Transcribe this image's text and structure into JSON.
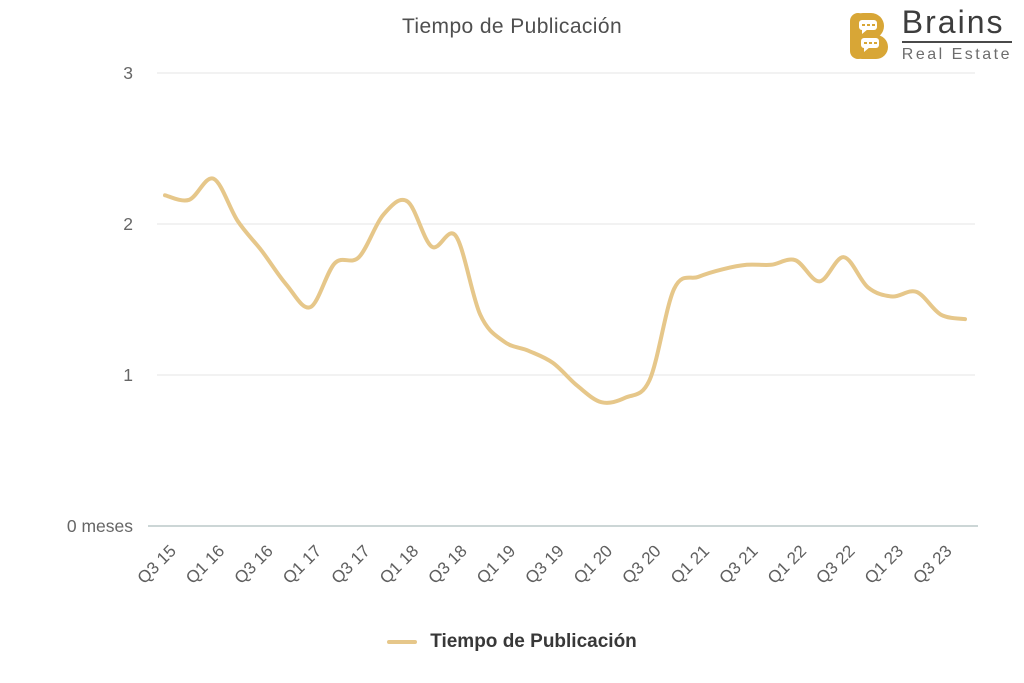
{
  "header": {
    "title": "Tiempo de Publicación",
    "logo": {
      "brand": "Brains",
      "sub": "Real Estate",
      "gold": "#d8a636"
    }
  },
  "chart_data": {
    "type": "line",
    "title": "Tiempo de Publicación",
    "unit": "meses",
    "x": [
      "Q3 15",
      "Q4 15",
      "Q1 16",
      "Q2 16",
      "Q3 16",
      "Q4 16",
      "Q1 17",
      "Q2 17",
      "Q3 17",
      "Q4 17",
      "Q1 18",
      "Q2 18",
      "Q3 18",
      "Q4 18",
      "Q1 19",
      "Q2 19",
      "Q3 19",
      "Q4 19",
      "Q1 20",
      "Q2 20",
      "Q3 20",
      "Q4 20",
      "Q1 21",
      "Q2 21",
      "Q3 21",
      "Q4 21",
      "Q1 22",
      "Q2 22",
      "Q3 22",
      "Q4 22",
      "Q1 23",
      "Q2 23",
      "Q3 23",
      "Q4 23"
    ],
    "series": [
      {
        "name": "Tiempo de Publicación",
        "values": [
          2.19,
          2.16,
          2.3,
          2.02,
          1.82,
          1.6,
          1.45,
          1.74,
          1.78,
          2.06,
          2.15,
          1.85,
          1.92,
          1.4,
          1.22,
          1.16,
          1.08,
          0.93,
          0.82,
          0.85,
          0.97,
          1.57,
          1.65,
          1.7,
          1.73,
          1.73,
          1.76,
          1.62,
          1.78,
          1.58,
          1.52,
          1.55,
          1.4,
          1.37
        ]
      }
    ],
    "x_tick_labels": [
      "Q3 15",
      "Q1 16",
      "Q3 16",
      "Q1 17",
      "Q3 17",
      "Q1 18",
      "Q3 18",
      "Q1 19",
      "Q3 19",
      "Q1 20",
      "Q3 20",
      "Q1 21",
      "Q3 21",
      "Q1 22",
      "Q3 22",
      "Q1 23",
      "Q3 23"
    ],
    "x_tick_every": 2,
    "y_ticks": [
      {
        "value": 3,
        "label": "3"
      },
      {
        "value": 2,
        "label": "2"
      },
      {
        "value": 1,
        "label": "1"
      },
      {
        "value": 0,
        "label": "0 meses"
      }
    ],
    "ylim": [
      0,
      3
    ],
    "grid": true,
    "smooth": true,
    "line_color": "#e6c78a",
    "grid_color": "#e5e5e5",
    "axis_line_color": "#ccd6d6",
    "label_color": "#666666",
    "legend_position": "bottom",
    "legend": [
      {
        "label": "Tiempo de Publicación",
        "color": "#e6c78a"
      }
    ]
  }
}
